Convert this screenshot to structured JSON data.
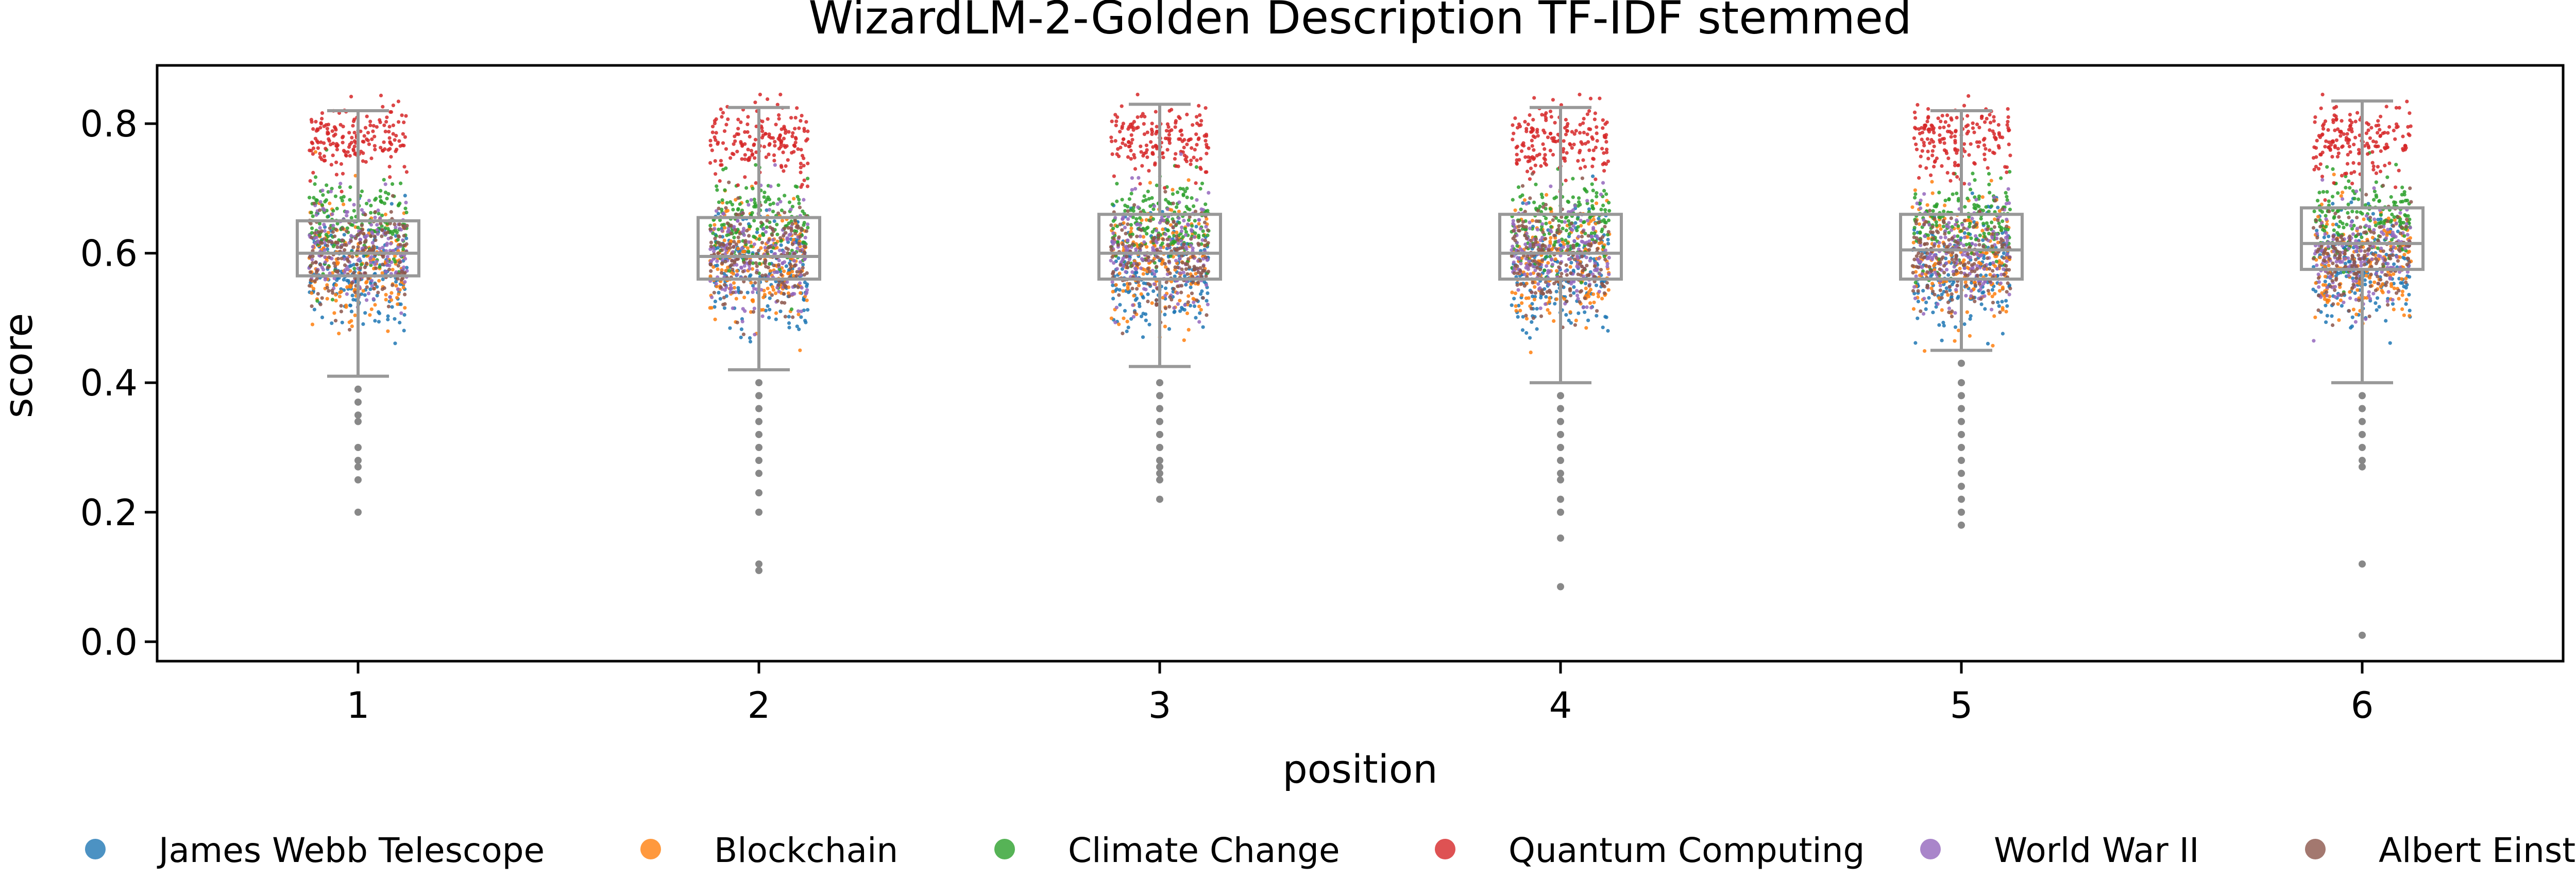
{
  "chart_data": {
    "type": "box-strip",
    "title": "WizardLM-2-Golden Description TF-IDF stemmed",
    "xlabel": "position",
    "ylabel": "score",
    "categories": [
      "1",
      "2",
      "3",
      "4",
      "5",
      "6"
    ],
    "ylim": [
      -0.03,
      0.89
    ],
    "yticks": [
      "0.0",
      "0.2",
      "0.4",
      "0.6",
      "0.8"
    ],
    "legend_position": "bottom",
    "box_color": "#999999",
    "boxes": [
      {
        "position": "1",
        "whisker_low": 0.41,
        "q1": 0.565,
        "median": 0.6,
        "q3": 0.65,
        "whisker_high": 0.82,
        "outliers": [
          0.39,
          0.37,
          0.35,
          0.34,
          0.3,
          0.28,
          0.27,
          0.25,
          0.2
        ]
      },
      {
        "position": "2",
        "whisker_low": 0.42,
        "q1": 0.56,
        "median": 0.595,
        "q3": 0.655,
        "whisker_high": 0.825,
        "outliers": [
          0.4,
          0.38,
          0.36,
          0.34,
          0.32,
          0.3,
          0.28,
          0.26,
          0.23,
          0.2,
          0.12,
          0.11
        ]
      },
      {
        "position": "3",
        "whisker_low": 0.425,
        "q1": 0.56,
        "median": 0.6,
        "q3": 0.66,
        "whisker_high": 0.83,
        "outliers": [
          0.4,
          0.38,
          0.36,
          0.34,
          0.32,
          0.3,
          0.28,
          0.27,
          0.26,
          0.25,
          0.22
        ]
      },
      {
        "position": "4",
        "whisker_low": 0.4,
        "q1": 0.56,
        "median": 0.6,
        "q3": 0.66,
        "whisker_high": 0.825,
        "outliers": [
          0.38,
          0.36,
          0.34,
          0.32,
          0.3,
          0.28,
          0.26,
          0.25,
          0.22,
          0.2,
          0.16,
          0.085
        ]
      },
      {
        "position": "5",
        "whisker_low": 0.45,
        "q1": 0.56,
        "median": 0.605,
        "q3": 0.66,
        "whisker_high": 0.82,
        "outliers": [
          0.43,
          0.4,
          0.38,
          0.36,
          0.34,
          0.32,
          0.3,
          0.28,
          0.26,
          0.24,
          0.22,
          0.2,
          0.18
        ]
      },
      {
        "position": "6",
        "whisker_low": 0.4,
        "q1": 0.575,
        "median": 0.615,
        "q3": 0.67,
        "whisker_high": 0.835,
        "outliers": [
          0.38,
          0.36,
          0.34,
          0.32,
          0.3,
          0.28,
          0.27,
          0.12,
          0.01
        ]
      }
    ],
    "series": [
      {
        "name": "James Webb Telescope",
        "color": "#1f77b4",
        "center": 0.57,
        "spread": 0.045
      },
      {
        "name": "Blockchain",
        "color": "#ff7f0e",
        "center": 0.585,
        "spread": 0.045
      },
      {
        "name": "Climate Change",
        "color": "#2ca02c",
        "center": 0.645,
        "spread": 0.035
      },
      {
        "name": "Quantum Computing",
        "color": "#d62728",
        "center": 0.775,
        "spread": 0.028
      },
      {
        "name": "World War II",
        "color": "#9467bd",
        "center": 0.6,
        "spread": 0.04
      },
      {
        "name": "Albert Einstein",
        "color": "#8c564b",
        "center": 0.595,
        "spread": 0.04
      }
    ]
  }
}
